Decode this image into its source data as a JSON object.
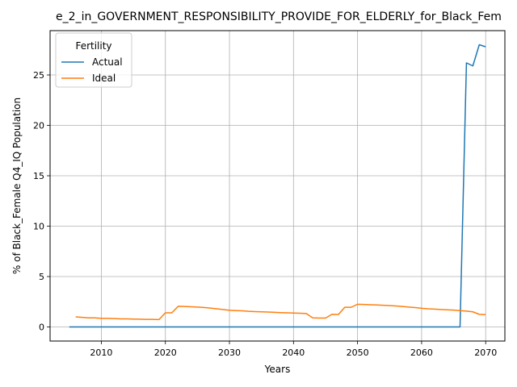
{
  "chart_data": {
    "type": "line",
    "title": "e_2_in_GOVERNMENT_RESPONSIBILITY_PROVIDE_FOR_ELDERLY_for_Black_Fem",
    "xlabel": "Years",
    "ylabel": "% of Black_Female Q4_IQ Population",
    "xlim": [
      2002,
      2073
    ],
    "ylim": [
      -1.4,
      29.4
    ],
    "xticks": [
      2010,
      2020,
      2030,
      2040,
      2050,
      2060,
      2070
    ],
    "yticks": [
      0,
      5,
      10,
      15,
      20,
      25
    ],
    "grid": true,
    "legend": {
      "title": "Fertility",
      "placement": "top-left"
    },
    "series": [
      {
        "name": "Actual",
        "color": "#1f77b4",
        "x": [
          2005,
          2066,
          2067,
          2068,
          2069,
          2070
        ],
        "y": [
          0,
          0,
          26.2,
          25.9,
          28.0,
          27.8
        ]
      },
      {
        "name": "Ideal",
        "color": "#ff7f0e",
        "x": [
          2006,
          2007,
          2008,
          2009,
          2010,
          2011,
          2012,
          2013,
          2014,
          2015,
          2016,
          2017,
          2018,
          2019,
          2020,
          2021,
          2022,
          2023,
          2024,
          2025,
          2026,
          2027,
          2028,
          2029,
          2030,
          2031,
          2032,
          2033,
          2034,
          2035,
          2036,
          2037,
          2038,
          2039,
          2040,
          2041,
          2042,
          2043,
          2044,
          2045,
          2046,
          2047,
          2048,
          2049,
          2050,
          2051,
          2052,
          2053,
          2054,
          2055,
          2056,
          2057,
          2058,
          2059,
          2060,
          2061,
          2062,
          2063,
          2064,
          2065,
          2066,
          2067,
          2068,
          2069,
          2070
        ],
        "y": [
          1.0,
          0.95,
          0.9,
          0.9,
          0.85,
          0.85,
          0.83,
          0.8,
          0.8,
          0.78,
          0.77,
          0.75,
          0.75,
          0.73,
          1.4,
          1.4,
          2.05,
          2.03,
          2.0,
          1.97,
          1.93,
          1.87,
          1.8,
          1.73,
          1.65,
          1.62,
          1.6,
          1.55,
          1.52,
          1.5,
          1.48,
          1.45,
          1.42,
          1.4,
          1.38,
          1.36,
          1.33,
          0.9,
          0.88,
          0.88,
          1.25,
          1.23,
          1.95,
          1.95,
          2.25,
          2.23,
          2.2,
          2.18,
          2.15,
          2.12,
          2.08,
          2.03,
          1.97,
          1.92,
          1.85,
          1.8,
          1.77,
          1.73,
          1.7,
          1.67,
          1.62,
          1.57,
          1.5,
          1.25,
          1.22
        ]
      }
    ]
  }
}
